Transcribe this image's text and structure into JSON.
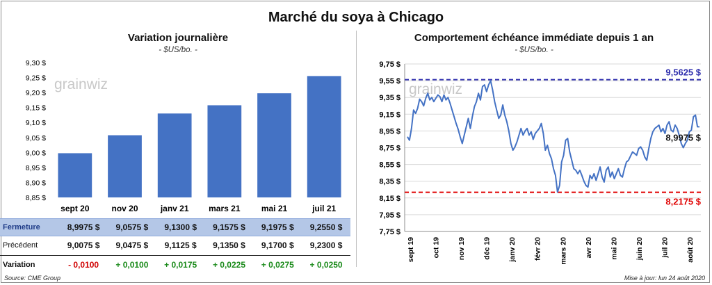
{
  "main_title": "Marché du soya à Chicago",
  "left": {
    "title": "Variation journalière",
    "unit": "- $US/bo. -",
    "watermark": "grainwiz"
  },
  "right": {
    "title": "Comportement échéance immédiate depuis 1 an",
    "unit": "- $US/bo. -",
    "watermark": "grainwiz"
  },
  "table": {
    "rows": [
      {
        "label": "Fermeture",
        "values": [
          "8,9975  $",
          "9,0575  $",
          "9,1300  $",
          "9,1575  $",
          "9,1975  $",
          "9,2550  $"
        ]
      },
      {
        "label": "Précédent",
        "values": [
          "9,0075  $",
          "9,0475  $",
          "9,1125  $",
          "9,1350  $",
          "9,1700  $",
          "9,2300  $"
        ]
      },
      {
        "label": "Variation",
        "values": [
          "- 0,0100",
          "+ 0,0100",
          "+ 0,0175",
          "+ 0,0225",
          "+ 0,0275",
          "+ 0,0250"
        ]
      }
    ]
  },
  "footer": {
    "source": "Source: CME Group",
    "updated": "Mise à jour: lun 24 août 2020"
  },
  "colors": {
    "bar": "#4472c4",
    "line": "#4472c4",
    "high": "#2e2ead",
    "low": "#e00000",
    "negative": "#d00000",
    "positive": "#1a8a1a"
  },
  "chart_data": [
    {
      "type": "bar",
      "title": "Variation journalière",
      "ylabel": "- $US/bo. -",
      "categories": [
        "sept 20",
        "nov 20",
        "janv 21",
        "mars 21",
        "mai 21",
        "juil 21"
      ],
      "values": [
        8.9975,
        9.0575,
        9.13,
        9.1575,
        9.1975,
        9.255
      ],
      "ylim": [
        8.85,
        9.3
      ],
      "yticks": [
        "8,85 $",
        "8,90 $",
        "8,95 $",
        "9,00 $",
        "9,05 $",
        "9,10 $",
        "9,15 $",
        "9,20 $",
        "9,25 $",
        "9,30 $"
      ],
      "grid": false
    },
    {
      "type": "line",
      "title": "Comportement échéance immédiate depuis 1 an",
      "ylabel": "- $US/bo. -",
      "ylim": [
        7.75,
        9.75
      ],
      "yticks": [
        "7,75 $",
        "7,95 $",
        "8,15 $",
        "8,35 $",
        "8,55 $",
        "8,75 $",
        "8,95 $",
        "9,15 $",
        "9,35 $",
        "9,55 $",
        "9,75 $"
      ],
      "xticks": [
        "sept 19",
        "oct 19",
        "nov 19",
        "déc 19",
        "janv 20",
        "févr 20",
        "mars 20",
        "avr 20",
        "mai 20",
        "juin 20",
        "juil 20",
        "août 20"
      ],
      "high": {
        "value": 9.5625,
        "label": "9,5625  $"
      },
      "low": {
        "value": 8.2175,
        "label": "8,2175  $"
      },
      "last": {
        "value": 8.9975,
        "label": "8,9975 $"
      },
      "values": [
        8.88,
        8.84,
        8.98,
        9.2,
        9.16,
        9.22,
        9.33,
        9.3,
        9.25,
        9.34,
        9.4,
        9.32,
        9.35,
        9.3,
        9.34,
        9.38,
        9.36,
        9.3,
        9.38,
        9.32,
        9.35,
        9.28,
        9.2,
        9.12,
        9.04,
        8.97,
        8.88,
        8.8,
        8.9,
        9.0,
        9.1,
        8.98,
        9.12,
        9.24,
        9.3,
        9.4,
        9.32,
        9.48,
        9.5,
        9.42,
        9.5,
        9.55,
        9.44,
        9.3,
        9.2,
        9.1,
        9.14,
        9.26,
        9.14,
        9.06,
        8.95,
        8.8,
        8.72,
        8.76,
        8.82,
        8.9,
        8.98,
        8.9,
        8.95,
        8.98,
        8.9,
        8.94,
        8.85,
        8.92,
        8.95,
        8.98,
        9.04,
        8.92,
        8.72,
        8.78,
        8.68,
        8.62,
        8.5,
        8.42,
        8.22,
        8.3,
        8.58,
        8.66,
        8.84,
        8.86,
        8.7,
        8.6,
        8.5,
        8.48,
        8.44,
        8.48,
        8.42,
        8.35,
        8.3,
        8.28,
        8.42,
        8.38,
        8.44,
        8.36,
        8.44,
        8.52,
        8.4,
        8.34,
        8.48,
        8.52,
        8.4,
        8.46,
        8.38,
        8.44,
        8.5,
        8.42,
        8.4,
        8.5,
        8.58,
        8.6,
        8.65,
        8.7,
        8.68,
        8.66,
        8.74,
        8.76,
        8.72,
        8.64,
        8.6,
        8.74,
        8.86,
        8.94,
        8.98,
        9.0,
        9.02,
        8.94,
        8.98,
        8.92,
        9.02,
        9.06,
        8.96,
        8.94,
        9.02,
        8.98,
        8.9,
        8.8,
        8.75,
        8.8,
        8.84,
        8.94,
        8.96,
        9.12,
        9.14,
        9.0,
        9.0
      ]
    }
  ]
}
